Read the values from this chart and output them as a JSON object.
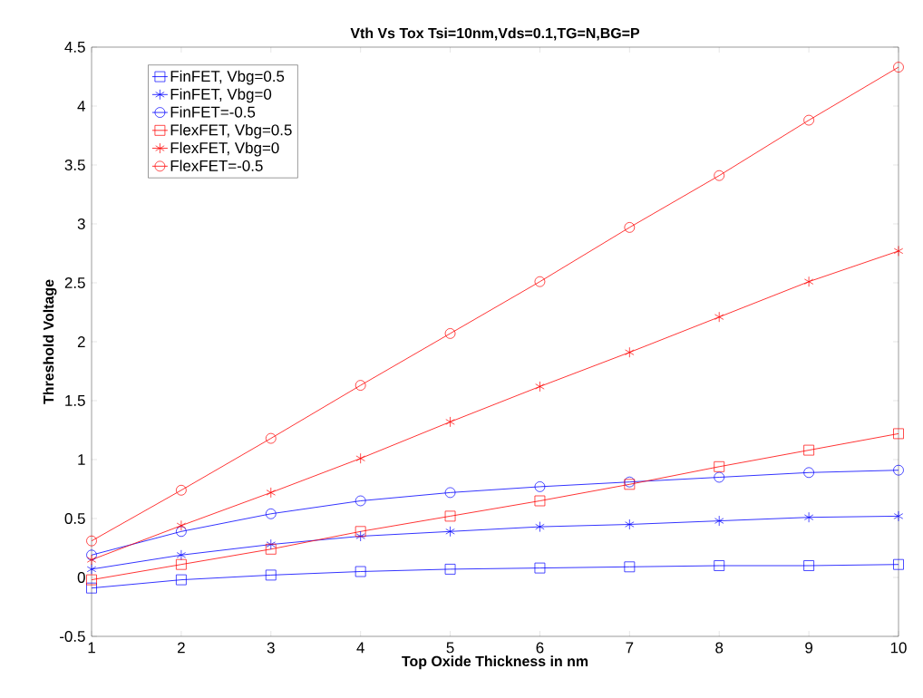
{
  "chart_data": {
    "type": "line",
    "title": "Vth Vs Tox Tsi=10nm,Vds=0.1,TG=N,BG=P",
    "xlabel": "Top Oxide Thickness in nm",
    "ylabel": "Threshold Voltage",
    "x": [
      1,
      2,
      3,
      4,
      5,
      6,
      7,
      8,
      9,
      10
    ],
    "series": [
      {
        "name": "FinFET, Vbg=0.5",
        "color": "#0000ff",
        "marker": "square",
        "values": [
          -0.09,
          -0.02,
          0.02,
          0.05,
          0.07,
          0.08,
          0.09,
          0.1,
          0.1,
          0.11
        ]
      },
      {
        "name": "FinFET, Vbg=0",
        "color": "#0000ff",
        "marker": "cross",
        "values": [
          0.07,
          0.19,
          0.28,
          0.35,
          0.39,
          0.43,
          0.45,
          0.48,
          0.51,
          0.52
        ]
      },
      {
        "name": "FinFET=-0.5",
        "color": "#0000ff",
        "marker": "circle",
        "values": [
          0.19,
          0.39,
          0.54,
          0.65,
          0.72,
          0.77,
          0.81,
          0.85,
          0.89,
          0.91
        ]
      },
      {
        "name": "FlexFET, Vbg=0.5",
        "color": "#ff0000",
        "marker": "square",
        "values": [
          -0.02,
          0.11,
          0.24,
          0.39,
          0.52,
          0.65,
          0.79,
          0.94,
          1.08,
          1.22
        ]
      },
      {
        "name": "FlexFET, Vbg=0",
        "color": "#ff0000",
        "marker": "cross",
        "values": [
          0.15,
          0.44,
          0.72,
          1.01,
          1.32,
          1.62,
          1.91,
          2.21,
          2.51,
          2.77
        ]
      },
      {
        "name": "FlexFET=-0.5",
        "color": "#ff0000",
        "marker": "circle",
        "values": [
          0.31,
          0.74,
          1.18,
          1.63,
          2.07,
          2.51,
          2.97,
          3.41,
          3.88,
          4.33
        ]
      }
    ],
    "xlim": [
      1,
      10
    ],
    "xticks": [
      1,
      2,
      3,
      4,
      5,
      6,
      7,
      8,
      9,
      10
    ],
    "ylim": [
      -0.5,
      4.5
    ],
    "yticks": [
      -0.5,
      0,
      0.5,
      1,
      1.5,
      2,
      2.5,
      3,
      3.5,
      4,
      4.5
    ],
    "grid": false,
    "legend": "top left",
    "line_style": "solid"
  }
}
